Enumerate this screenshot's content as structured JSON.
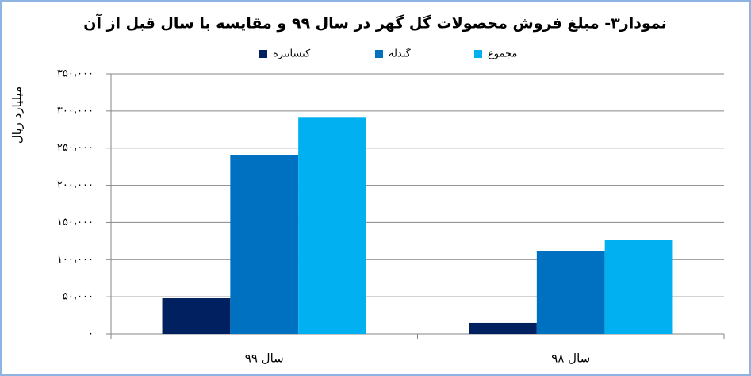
{
  "chart_data": {
    "type": "bar",
    "title": "نمودار۳- مبلغ فروش محصولات گل گهر در سال ۹۹ و مقایسه با سال قبل از آن",
    "y_label": "میلیارد ریال",
    "categories": [
      "سال ۹۹",
      "سال ۹۸"
    ],
    "series": [
      {
        "name": "کنسانتره",
        "color": "#002060",
        "values": [
          48000,
          15000
        ]
      },
      {
        "name": "گندله",
        "color": "#0070c0",
        "values": [
          241000,
          111000
        ]
      },
      {
        "name": "مجموع",
        "color": "#00b0f0",
        "values": [
          291000,
          127000
        ]
      }
    ],
    "ylim": [
      0,
      350000
    ],
    "yticks": [
      {
        "value": 0,
        "label": "٠"
      },
      {
        "value": 50000,
        "label": "۵۰،۰۰۰"
      },
      {
        "value": 100000,
        "label": "۱۰۰،۰۰۰"
      },
      {
        "value": 150000,
        "label": "۱۵۰،۰۰۰"
      },
      {
        "value": 200000,
        "label": "۲۰۰،۰۰۰"
      },
      {
        "value": 250000,
        "label": "۲۵۰،۰۰۰"
      },
      {
        "value": 300000,
        "label": "۳۰۰،۰۰۰"
      },
      {
        "value": 350000,
        "label": "۳۵۰،۰۰۰"
      }
    ],
    "grid": true,
    "legend": "top"
  }
}
